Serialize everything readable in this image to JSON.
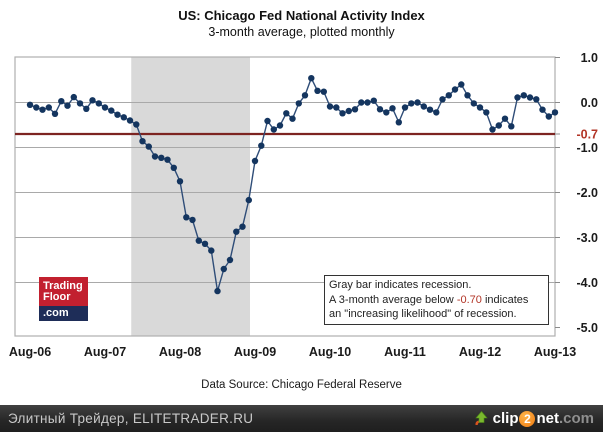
{
  "header": {
    "title": "US: Chicago Fed National Activity Index",
    "subtitle": "3-month average, plotted monthly"
  },
  "chart_data": {
    "type": "line",
    "title": "US: Chicago Fed National Activity Index",
    "subtitle": "3-month average, plotted monthly",
    "frequency": "monthly",
    "start_month": "Aug-06",
    "end_month": "Aug-13",
    "x_tick_labels": [
      "Aug-06",
      "Aug-07",
      "Aug-08",
      "Aug-09",
      "Aug-10",
      "Aug-11",
      "Aug-12",
      "Aug-13"
    ],
    "ylim": [
      -5.0,
      1.0
    ],
    "gridlines_at": [
      0,
      -1,
      -2,
      -3,
      -4
    ],
    "y_ticks": [
      {
        "label": "1.0",
        "value": 1.0,
        "color": "#1a1a1a"
      },
      {
        "label": "0.0",
        "value": 0.0,
        "color": "#1a1a1a"
      },
      {
        "label": "-0.7",
        "value": -0.7,
        "color": "#b23527"
      },
      {
        "label": "-1.0",
        "value": -1.0,
        "color": "#1a1a1a"
      },
      {
        "label": "-2.0",
        "value": -2.0,
        "color": "#1a1a1a"
      },
      {
        "label": "-3.0",
        "value": -3.0,
        "color": "#1a1a1a"
      },
      {
        "label": "-4.0",
        "value": -4.0,
        "color": "#1a1a1a"
      },
      {
        "label": "-5.0",
        "value": -5.0,
        "color": "#1a1a1a"
      }
    ],
    "threshold": {
      "value": -0.7,
      "label": "-0.7",
      "line_color": "#7d2421"
    },
    "recession_band": {
      "start_month": "Dec-07",
      "end_month": "Jul-09",
      "start_index": 16.2,
      "end_index": 35.2,
      "color": "#d9d9d9"
    },
    "legend": "none",
    "series": [
      {
        "name": "CFNAI 3-month moving average",
        "marker_color": "#14355f",
        "line_color": "#2f4d78",
        "values": [
          -0.05,
          -0.11,
          -0.16,
          -0.11,
          -0.25,
          0.03,
          -0.07,
          0.12,
          -0.02,
          -0.14,
          0.05,
          -0.02,
          -0.11,
          -0.18,
          -0.27,
          -0.33,
          -0.4,
          -0.49,
          -0.86,
          -0.98,
          -1.2,
          -1.23,
          -1.27,
          -1.45,
          -1.75,
          -2.55,
          -2.61,
          -3.07,
          -3.14,
          -3.29,
          -4.19,
          -3.7,
          -3.5,
          -2.87,
          -2.76,
          -2.17,
          -1.3,
          -0.96,
          -0.41,
          -0.6,
          -0.51,
          -0.24,
          -0.36,
          -0.02,
          0.16,
          0.54,
          0.26,
          0.24,
          -0.09,
          -0.11,
          -0.24,
          -0.19,
          -0.15,
          0.0,
          0.0,
          0.04,
          -0.15,
          -0.22,
          -0.13,
          -0.44,
          -0.11,
          -0.02,
          0.0,
          -0.09,
          -0.16,
          -0.22,
          0.07,
          0.16,
          0.29,
          0.4,
          0.16,
          -0.02,
          -0.11,
          -0.22,
          -0.6,
          -0.51,
          -0.36,
          -0.53,
          0.11,
          0.16,
          0.11,
          0.07,
          -0.16,
          -0.31,
          -0.22
        ]
      }
    ]
  },
  "annotation": {
    "line1": "Gray bar indicates recession.",
    "line2_pre": "A 3-month average below ",
    "line2_threshold": "-0.70",
    "line2_post": " indicates",
    "line3": "an \"increasing likelihood\" of recession."
  },
  "logo": {
    "line1": "Trading",
    "line2": "Floor",
    "line3": ".com"
  },
  "footer": {
    "data_source": "Data Source: Chicago Federal Reserve"
  },
  "watermark": {
    "left_text": "Элитный Трейдер, ELITETRADER.RU",
    "clip2net": {
      "part1": "clip",
      "part2": "2",
      "part3": "net",
      "part4": ".com"
    }
  },
  "colors": {
    "grid": "#a9a9a9",
    "frame": "#aFaFaF",
    "recession_band": "#d9d9d9",
    "threshold_line": "#7d2421",
    "threshold_text": "#b23527",
    "axis_text": "#1a1a1a"
  }
}
